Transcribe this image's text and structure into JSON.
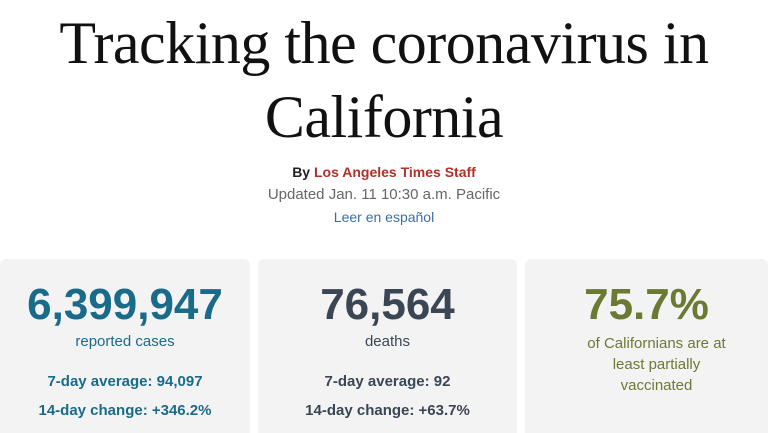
{
  "headline": {
    "line1": "Tracking the coronavirus in",
    "line2": "California"
  },
  "byline": {
    "prefix": "By",
    "author": "Los Angeles Times Staff"
  },
  "updated": "Updated Jan. 11 10:30 a.m. Pacific",
  "spanish_link": "Leer en español",
  "colors": {
    "cases": "#1a6b8a",
    "deaths": "#3a4654",
    "vaccinated": "#6b7a32",
    "author": "#b1302a",
    "link": "#3a6fa5"
  },
  "cards": {
    "cases": {
      "value": "6,399,947",
      "label": "reported cases",
      "avg": "7-day average: 94,097",
      "change": "14-day change: +346.2%"
    },
    "deaths": {
      "value": "76,564",
      "label": "deaths",
      "avg": "7-day average: 92",
      "change": "14-day change: +63.7%"
    },
    "vaccinated": {
      "value": "75.7%",
      "label": "of Californians are at least partially vaccinated"
    }
  }
}
